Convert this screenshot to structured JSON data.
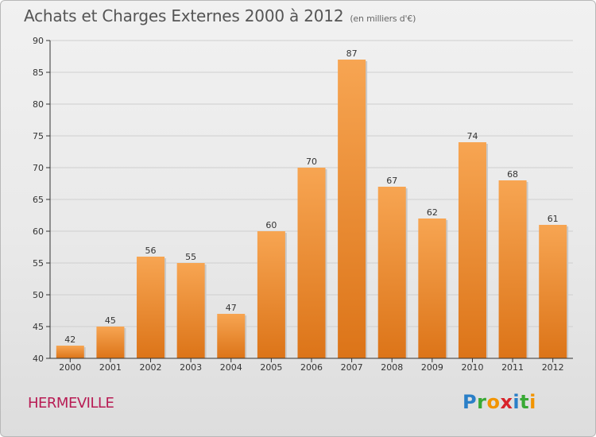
{
  "title": "Achats et Charges Externes 2000 à 2012",
  "unit": "(en milliers d'€)",
  "location": "HERMEVILLE",
  "brand": {
    "letters": [
      "P",
      "r",
      "o",
      "x",
      "i",
      "t",
      "i"
    ],
    "colors": [
      "#2a7fc7",
      "#39a935",
      "#f29400",
      "#d8232a",
      "#2a7fc7",
      "#39a935",
      "#f29400"
    ]
  },
  "bar_color": "#f0882a",
  "chart_data": {
    "type": "bar",
    "categories": [
      "2000",
      "2001",
      "2002",
      "2003",
      "2004",
      "2005",
      "2006",
      "2007",
      "2008",
      "2009",
      "2010",
      "2011",
      "2012"
    ],
    "values": [
      42,
      45,
      56,
      55,
      47,
      60,
      70,
      87,
      67,
      62,
      74,
      68,
      61
    ],
    "title": "Achats et Charges Externes 2000 à 2012",
    "xlabel": "",
    "ylabel": "",
    "ylim": [
      40,
      90
    ],
    "yticks": [
      40,
      45,
      50,
      55,
      60,
      65,
      70,
      75,
      80,
      85,
      90
    ],
    "grid": true,
    "data_labels": true
  }
}
